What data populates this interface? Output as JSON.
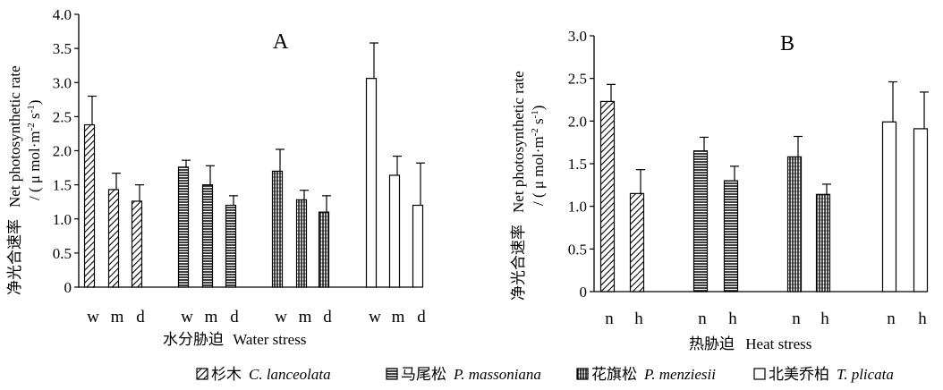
{
  "figure": {
    "legend": [
      {
        "cn": "杉木",
        "latin": "C. lanceolata",
        "pattern": "diag"
      },
      {
        "cn": "马尾松",
        "latin": "P. massoniana",
        "pattern": "hstripe"
      },
      {
        "cn": "花旗松",
        "latin": "P. menziesii",
        "pattern": "vstripe"
      },
      {
        "cn": "北美乔柏",
        "latin": "T. plicata",
        "pattern": "white"
      }
    ]
  },
  "chart_data": [
    {
      "type": "bar",
      "panel": "A",
      "ylabel_cn": "净光合速率",
      "ylabel_en": "Net photosynthetic rate",
      "ylabel_unit": "/ ( μ mol·m-2 s-1)",
      "xlabel_cn": "水分胁迫",
      "xlabel_en": "Water stress",
      "ylim": [
        0,
        4.0
      ],
      "yticks": [
        "0",
        "0.5",
        "1.0",
        "1.5",
        "2.0",
        "2.5",
        "3.0",
        "3.5",
        "4.0"
      ],
      "categories": [
        "w",
        "m",
        "d"
      ],
      "series": [
        {
          "name": "杉木 C. lanceolata",
          "pattern": "diag",
          "values": [
            2.38,
            1.43,
            1.26
          ],
          "errors": [
            0.42,
            0.24,
            0.24
          ]
        },
        {
          "name": "马尾松 P. massoniana",
          "pattern": "hstripe",
          "values": [
            1.76,
            1.5,
            1.2
          ],
          "errors": [
            0.1,
            0.28,
            0.14
          ]
        },
        {
          "name": "花旗松 P. menziesii",
          "pattern": "vstripe",
          "values": [
            1.7,
            1.28,
            1.1
          ],
          "errors": [
            0.32,
            0.14,
            0.24
          ]
        },
        {
          "name": "北美乔柏 T. plicata",
          "pattern": "white",
          "values": [
            3.06,
            1.64,
            1.2
          ],
          "errors": [
            0.52,
            0.28,
            0.62
          ]
        }
      ]
    },
    {
      "type": "bar",
      "panel": "B",
      "ylabel_cn": "净光合速率",
      "ylabel_en": "Net photosynthetic rate",
      "ylabel_unit": "/ ( μ mol·m-2 s-1)",
      "xlabel_cn": "热胁迫",
      "xlabel_en": "Heat stress",
      "ylim": [
        0,
        3.0
      ],
      "yticks": [
        "0",
        "0.5",
        "1.0",
        "1.5",
        "2.0",
        "2.5",
        "3.0"
      ],
      "categories": [
        "n",
        "h"
      ],
      "series": [
        {
          "name": "杉木 C. lanceolata",
          "pattern": "diag",
          "values": [
            2.23,
            1.15
          ],
          "errors": [
            0.2,
            0.28
          ]
        },
        {
          "name": "马尾松 P. massoniana",
          "pattern": "hstripe",
          "values": [
            1.65,
            1.3
          ],
          "errors": [
            0.16,
            0.17
          ]
        },
        {
          "name": "花旗松 P. menziesii",
          "pattern": "vstripe",
          "values": [
            1.58,
            1.14
          ],
          "errors": [
            0.24,
            0.12
          ]
        },
        {
          "name": "北美乔柏 T. plicata",
          "pattern": "white",
          "values": [
            1.99,
            1.91
          ],
          "errors": [
            0.47,
            0.43
          ]
        }
      ]
    }
  ]
}
